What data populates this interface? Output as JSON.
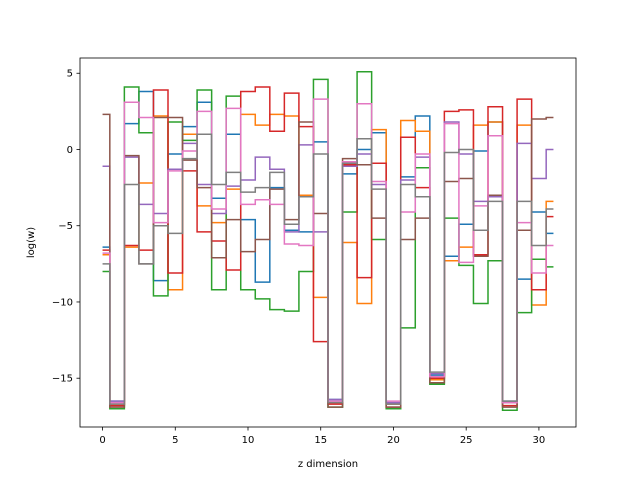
{
  "chart_data": {
    "type": "line",
    "step": "mid",
    "xlabel": "z dimension",
    "ylabel": "log(w)",
    "xlim": [
      -1.55,
      32.55
    ],
    "ylim": [
      -18.2,
      6.0
    ],
    "xticks": [
      0,
      5,
      10,
      15,
      20,
      25,
      30
    ],
    "yticks": [
      5,
      0,
      -5,
      -10,
      -15
    ],
    "ytick_labels": [
      "5",
      "0",
      "−5",
      "−10",
      "−15"
    ],
    "grid": false,
    "x": [
      0,
      1,
      2,
      3,
      4,
      5,
      6,
      7,
      8,
      9,
      10,
      11,
      12,
      13,
      14,
      15,
      16,
      17,
      18,
      19,
      20,
      21,
      22,
      23,
      24,
      25,
      26,
      27,
      28,
      29,
      30,
      31
    ],
    "series": [
      {
        "color": "#1f77b4",
        "values": [
          -6.4,
          -16.5,
          1.7,
          3.8,
          -8.6,
          -0.3,
          1.5,
          3.1,
          -3.2,
          1.0,
          -4.6,
          -8.7,
          -2.5,
          -5.3,
          -5.4,
          0.5,
          -16.4,
          -1.6,
          0.0,
          1.1,
          -16.6,
          -1.8,
          2.2,
          -14.8,
          -7.0,
          -4.9,
          -0.1,
          1.8,
          -16.5,
          -8.5,
          -4.1,
          -5.5
        ]
      },
      {
        "color": "#ff7f0e",
        "values": [
          -6.9,
          -16.7,
          -6.4,
          -2.2,
          2.2,
          -9.2,
          1.0,
          -3.7,
          -4.8,
          -2.6,
          2.3,
          1.6,
          2.3,
          2.2,
          -3.0,
          -9.7,
          -16.6,
          -6.1,
          -10.1,
          1.3,
          -16.7,
          1.9,
          1.2,
          -15.1,
          -7.3,
          -6.4,
          1.6,
          1.8,
          -16.6,
          1.6,
          -10.2,
          -3.4
        ]
      },
      {
        "color": "#2ca02c",
        "values": [
          -8.0,
          -17.0,
          4.1,
          1.1,
          -9.6,
          1.8,
          0.6,
          3.9,
          -9.2,
          3.5,
          -9.2,
          -9.8,
          -10.5,
          -10.6,
          -8.0,
          4.6,
          -16.9,
          -4.1,
          5.1,
          -5.9,
          -17.0,
          -11.7,
          -1.2,
          -15.4,
          -4.5,
          -7.6,
          -10.1,
          -7.3,
          -17.1,
          -10.7,
          -7.2,
          -7.7
        ]
      },
      {
        "color": "#d62728",
        "values": [
          -6.6,
          -16.8,
          -6.3,
          -6.6,
          3.9,
          -8.1,
          -1.4,
          -5.4,
          -6.0,
          -7.9,
          3.8,
          4.1,
          1.2,
          3.7,
          1.5,
          -12.6,
          -16.7,
          -1.0,
          -8.4,
          -0.9,
          -16.9,
          0.8,
          -2.5,
          -15.0,
          2.5,
          2.6,
          -6.9,
          2.8,
          -16.8,
          3.3,
          -9.2,
          -4.4
        ]
      },
      {
        "color": "#9467bd",
        "values": [
          -1.1,
          -16.5,
          -0.5,
          -3.6,
          -4.2,
          -1.3,
          0.4,
          -2.3,
          -4.2,
          -2.4,
          -2.0,
          -0.5,
          -1.3,
          -5.4,
          0.3,
          -5.4,
          -16.4,
          -1.1,
          -0.3,
          -2.3,
          -16.6,
          -2.0,
          -0.5,
          -14.7,
          1.8,
          -0.3,
          -3.4,
          -3.1,
          -16.6,
          0.4,
          -1.9,
          0.0
        ]
      },
      {
        "color": "#8c564b",
        "values": [
          2.3,
          -16.9,
          -0.4,
          -7.5,
          2.1,
          2.1,
          -0.7,
          -2.5,
          -7.1,
          -4.6,
          -6.7,
          -5.9,
          -2.6,
          -4.6,
          1.8,
          -4.2,
          -16.9,
          -0.6,
          -1.0,
          -4.5,
          -16.9,
          -5.9,
          -4.5,
          -15.3,
          -2.1,
          -1.9,
          -7.0,
          -3.0,
          -16.9,
          -5.3,
          2.0,
          2.1
        ]
      },
      {
        "color": "#e377c2",
        "values": [
          -6.8,
          -16.6,
          3.1,
          2.1,
          -4.8,
          -1.4,
          -0.1,
          2.5,
          -3.9,
          2.7,
          -3.6,
          -3.3,
          -3.6,
          -6.2,
          -6.3,
          3.3,
          -16.5,
          -0.8,
          3.0,
          -2.1,
          -16.5,
          -4.1,
          -0.3,
          -14.9,
          1.7,
          -7.4,
          -3.7,
          0.9,
          -16.6,
          -4.8,
          -8.1,
          -6.3
        ]
      },
      {
        "color": "#7f7f7f",
        "values": [
          -7.5,
          -16.7,
          -2.3,
          -7.5,
          -5.0,
          -5.5,
          -0.6,
          1.0,
          -2.3,
          -1.5,
          -2.8,
          -2.5,
          -1.5,
          -4.9,
          -3.1,
          -0.3,
          -16.6,
          -0.9,
          0.7,
          -2.6,
          -16.7,
          -2.3,
          -3.1,
          -14.6,
          -0.2,
          0.0,
          -5.3,
          -3.4,
          -16.5,
          -3.4,
          -6.3,
          -3.9
        ]
      }
    ]
  }
}
